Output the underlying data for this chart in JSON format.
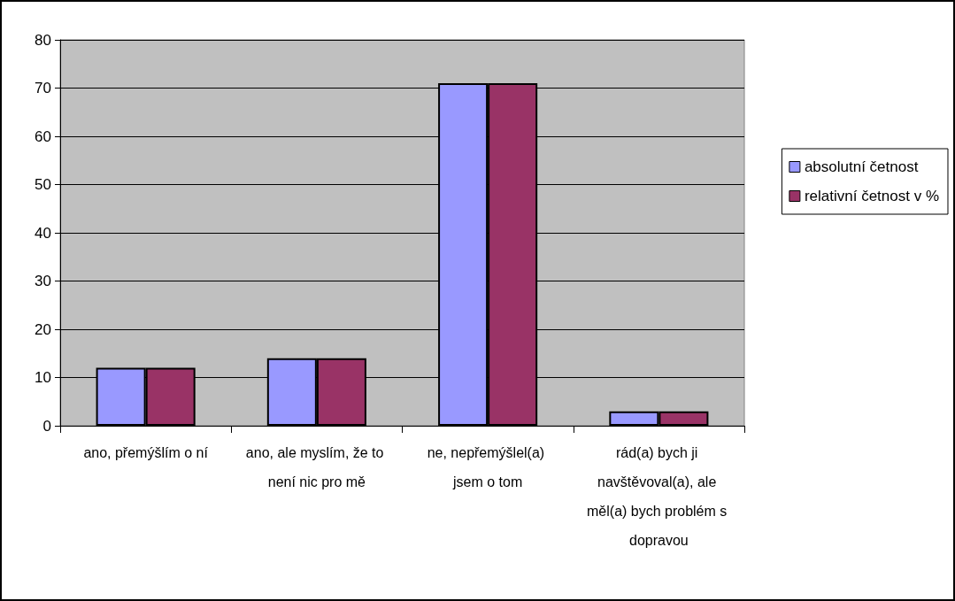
{
  "chart_data": {
    "type": "bar",
    "categories": [
      "ano, přemýšlím o ní",
      "ano, ale myslím, že to není nic pro mě",
      "ne, nepřemýšlel(a) jsem o tom",
      "rád(a) bych ji navštěvoval(a), ale měl(a) bych problém s dopravou"
    ],
    "series": [
      {
        "name": "absolutní četnost",
        "color": "#9999ff",
        "values": [
          12,
          14,
          71,
          3
        ]
      },
      {
        "name": "relativní četnost v %",
        "color": "#993366",
        "values": [
          12,
          14,
          71,
          3
        ]
      }
    ],
    "ylim": [
      0,
      80
    ],
    "yticks": [
      0,
      10,
      20,
      30,
      40,
      50,
      60,
      70,
      80
    ],
    "grid": "y",
    "legend": "right"
  }
}
